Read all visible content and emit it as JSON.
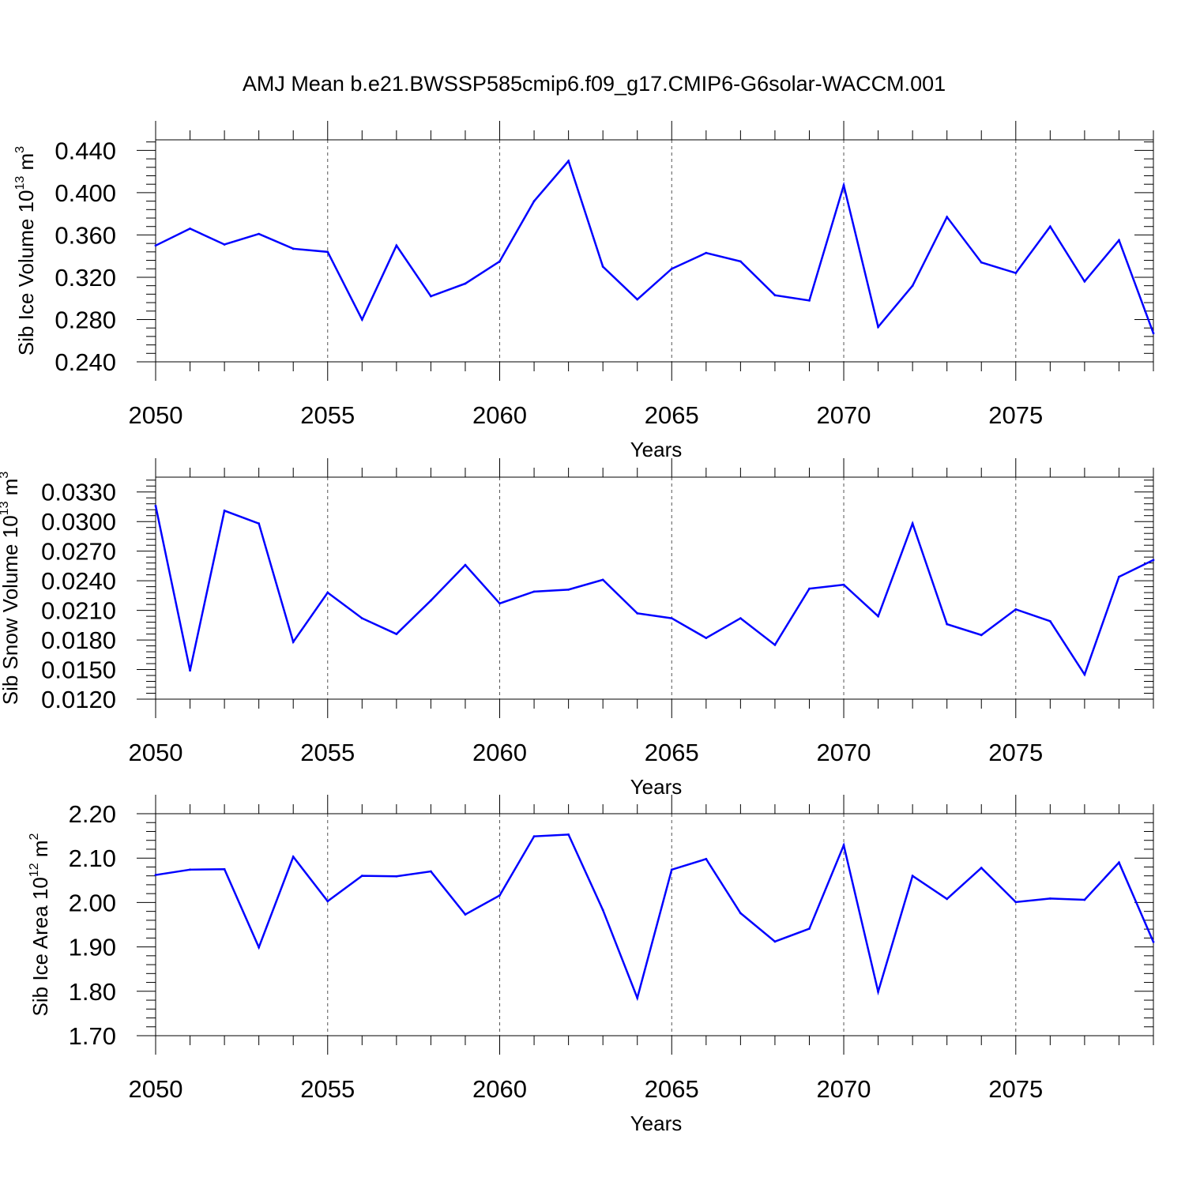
{
  "figure": {
    "title": "AMJ Mean b.e21.BWSSP585cmip6.f09_g17.CMIP6-G6solar-WACCM.001",
    "line_color": "#0000ff",
    "grid": "vertical dashed at major x ticks"
  },
  "chart_data": [
    {
      "type": "line",
      "xlabel": "Years",
      "ylabel_main": "Sib Ice Volume 10",
      "ylabel_exp": "13",
      "ylabel_unit": " m",
      "ylabel_unit_exp": "3",
      "xlim": [
        2050,
        2079
      ],
      "xticks": [
        2050,
        2055,
        2060,
        2065,
        2070,
        2075
      ],
      "ylim": [
        0.24,
        0.45
      ],
      "yticks": [
        "0.240",
        "0.280",
        "0.320",
        "0.360",
        "0.400",
        "0.440"
      ],
      "x": [
        2050,
        2051,
        2052,
        2053,
        2054,
        2055,
        2056,
        2057,
        2058,
        2059,
        2060,
        2061,
        2062,
        2063,
        2064,
        2065,
        2066,
        2067,
        2068,
        2069,
        2070,
        2071,
        2072,
        2073,
        2074,
        2075,
        2076,
        2077,
        2078,
        2079
      ],
      "series": [
        {
          "values": [
            0.35,
            0.366,
            0.351,
            0.361,
            0.347,
            0.344,
            0.28,
            0.35,
            0.302,
            0.314,
            0.335,
            0.392,
            0.43,
            0.33,
            0.299,
            0.328,
            0.343,
            0.335,
            0.303,
            0.298,
            0.407,
            0.273,
            0.312,
            0.377,
            0.334,
            0.324,
            0.368,
            0.316,
            0.355,
            0.267
          ]
        }
      ]
    },
    {
      "type": "line",
      "xlabel": "Years",
      "ylabel_main": "Sib Snow Volume 10",
      "ylabel_exp": "13",
      "ylabel_unit": " m",
      "ylabel_unit_exp": "3",
      "xlim": [
        2050,
        2079
      ],
      "xticks": [
        2050,
        2055,
        2060,
        2065,
        2070,
        2075
      ],
      "ylim": [
        0.012,
        0.0345
      ],
      "yticks": [
        "0.0120",
        "0.0150",
        "0.0180",
        "0.0210",
        "0.0240",
        "0.0270",
        "0.0300",
        "0.0330"
      ],
      "x": [
        2050,
        2051,
        2052,
        2053,
        2054,
        2055,
        2056,
        2057,
        2058,
        2059,
        2060,
        2061,
        2062,
        2063,
        2064,
        2065,
        2066,
        2067,
        2068,
        2069,
        2070,
        2071,
        2072,
        2073,
        2074,
        2075,
        2076,
        2077,
        2078,
        2079
      ],
      "series": [
        {
          "values": [
            0.0316,
            0.0149,
            0.0311,
            0.0298,
            0.0178,
            0.0228,
            0.0202,
            0.0186,
            0.022,
            0.0256,
            0.0217,
            0.0229,
            0.0231,
            0.0241,
            0.0207,
            0.0202,
            0.0182,
            0.0202,
            0.0175,
            0.0232,
            0.0236,
            0.0204,
            0.0298,
            0.0196,
            0.0185,
            0.0211,
            0.0199,
            0.0145,
            0.0244,
            0.0261
          ]
        }
      ]
    },
    {
      "type": "line",
      "xlabel": "Years",
      "ylabel_main": "Sib Ice Area 10",
      "ylabel_exp": "12",
      "ylabel_unit": " m",
      "ylabel_unit_exp": "2",
      "xlim": [
        2050,
        2079
      ],
      "xticks": [
        2050,
        2055,
        2060,
        2065,
        2070,
        2075
      ],
      "ylim": [
        1.7,
        2.2
      ],
      "yticks": [
        "1.70",
        "1.80",
        "1.90",
        "2.00",
        "2.10",
        "2.20"
      ],
      "x": [
        2050,
        2051,
        2052,
        2053,
        2054,
        2055,
        2056,
        2057,
        2058,
        2059,
        2060,
        2061,
        2062,
        2063,
        2064,
        2065,
        2066,
        2067,
        2068,
        2069,
        2070,
        2071,
        2072,
        2073,
        2074,
        2075,
        2076,
        2077,
        2078,
        2079
      ],
      "series": [
        {
          "values": [
            2.062,
            2.074,
            2.075,
            1.899,
            2.103,
            2.003,
            2.06,
            2.059,
            2.07,
            1.973,
            2.016,
            2.149,
            2.153,
            1.983,
            1.785,
            2.074,
            2.098,
            1.976,
            1.912,
            1.941,
            2.129,
            1.799,
            2.06,
            2.008,
            2.078,
            2.001,
            2.009,
            2.006,
            2.09,
            1.911
          ]
        }
      ]
    }
  ]
}
